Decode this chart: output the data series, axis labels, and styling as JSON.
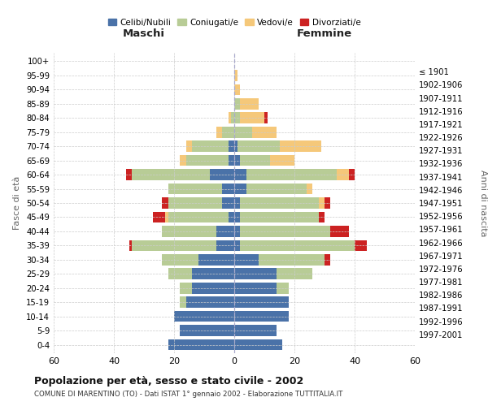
{
  "age_groups": [
    "0-4",
    "5-9",
    "10-14",
    "15-19",
    "20-24",
    "25-29",
    "30-34",
    "35-39",
    "40-44",
    "45-49",
    "50-54",
    "55-59",
    "60-64",
    "65-69",
    "70-74",
    "75-79",
    "80-84",
    "85-89",
    "90-94",
    "95-99",
    "100+"
  ],
  "birth_years": [
    "1997-2001",
    "1992-1996",
    "1987-1991",
    "1982-1986",
    "1977-1981",
    "1972-1976",
    "1967-1971",
    "1962-1966",
    "1957-1961",
    "1952-1956",
    "1947-1951",
    "1942-1946",
    "1937-1941",
    "1932-1936",
    "1927-1931",
    "1922-1926",
    "1917-1921",
    "1912-1916",
    "1907-1911",
    "1902-1906",
    "≤ 1901"
  ],
  "maschi": {
    "celibi": [
      22,
      18,
      20,
      16,
      14,
      14,
      12,
      6,
      6,
      2,
      4,
      4,
      8,
      2,
      2,
      0,
      0,
      0,
      0,
      0,
      0
    ],
    "coniugati": [
      0,
      0,
      0,
      2,
      4,
      8,
      12,
      28,
      18,
      20,
      18,
      18,
      26,
      14,
      12,
      4,
      1,
      0,
      0,
      0,
      0
    ],
    "vedovi": [
      0,
      0,
      0,
      0,
      0,
      0,
      0,
      0,
      0,
      1,
      0,
      0,
      0,
      2,
      2,
      2,
      1,
      0,
      0,
      0,
      0
    ],
    "divorziati": [
      0,
      0,
      0,
      0,
      0,
      0,
      0,
      1,
      0,
      4,
      2,
      0,
      2,
      0,
      0,
      0,
      0,
      0,
      0,
      0,
      0
    ]
  },
  "femmine": {
    "nubili": [
      16,
      14,
      18,
      18,
      14,
      14,
      8,
      2,
      2,
      2,
      2,
      4,
      4,
      2,
      1,
      0,
      0,
      0,
      0,
      0,
      0
    ],
    "coniugate": [
      0,
      0,
      0,
      0,
      4,
      12,
      22,
      38,
      30,
      26,
      26,
      20,
      30,
      10,
      14,
      6,
      2,
      2,
      0,
      0,
      0
    ],
    "vedove": [
      0,
      0,
      0,
      0,
      0,
      0,
      0,
      0,
      0,
      0,
      2,
      2,
      4,
      8,
      14,
      8,
      8,
      6,
      2,
      1,
      0
    ],
    "divorziate": [
      0,
      0,
      0,
      0,
      0,
      0,
      2,
      4,
      6,
      2,
      2,
      0,
      2,
      0,
      0,
      0,
      1,
      0,
      0,
      0,
      0
    ]
  },
  "colors": {
    "celibi": "#4a72a8",
    "coniugati": "#b8cc96",
    "vedovi": "#f5c87a",
    "divorziati": "#cc2222"
  },
  "title": "Popolazione per età, sesso e stato civile - 2002",
  "subtitle": "COMUNE DI MARENTINO (TO) - Dati ISTAT 1° gennaio 2002 - Elaborazione TUTTITALIA.IT",
  "xlabel_left": "Maschi",
  "xlabel_right": "Femmine",
  "ylabel_left": "Fasce di età",
  "ylabel_right": "Anni di nascita",
  "xlim": 60,
  "xticks": [
    -60,
    -40,
    -20,
    0,
    20,
    40,
    60
  ],
  "bg_color": "#ffffff",
  "grid_color": "#cccccc"
}
